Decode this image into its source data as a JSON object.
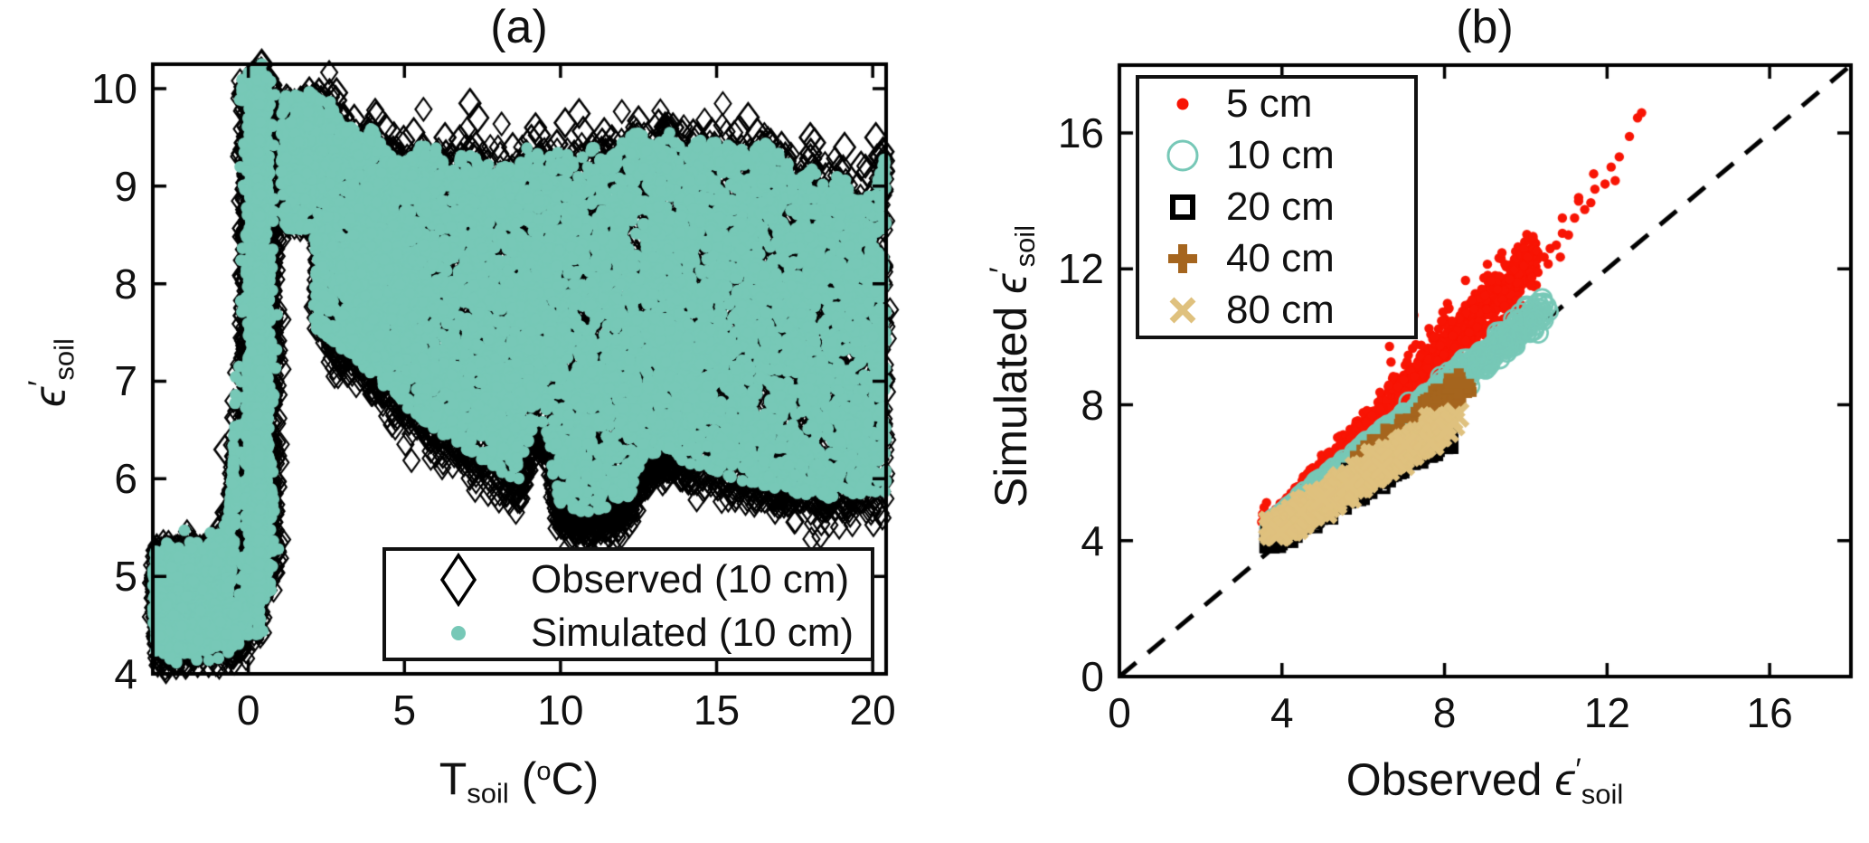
{
  "colors": {
    "teal": "#77C8B7",
    "red": "#F81404",
    "black": "#000000",
    "brown": "#A5651E",
    "tan": "#DFC17E",
    "axis": "#000000",
    "text": "#111111"
  },
  "chart_data": [
    {
      "panel": "a",
      "type": "scatter",
      "title": "(a)",
      "xlabel": {
        "t": "T",
        "sub": "soil",
        "mid": " (",
        "sup": "o",
        "end": "C)"
      },
      "ylabel": {
        "pre": "",
        "eps": "ϵ",
        "prime": "′",
        "sub": "soil"
      },
      "xlim": [
        -3.06,
        20.43
      ],
      "ylim": [
        4,
        10.25
      ],
      "xticks": [
        0,
        5,
        10,
        15,
        20
      ],
      "yticks": [
        4,
        5,
        6,
        7,
        8,
        9,
        10
      ],
      "grid": false,
      "legend_position": "lower right",
      "legend": [
        {
          "label": "Observed (10 cm)",
          "marker": "diamond",
          "color_key": "black"
        },
        {
          "label": "Simulated (10 cm)",
          "marker": "dot",
          "color_key": "teal"
        }
      ],
      "groups": [
        {
          "kind": "band",
          "poly": [
            [
              -3.06,
              5.02
            ],
            [
              -2.2,
              5.05
            ],
            [
              -1.4,
              5.08
            ],
            [
              -0.95,
              5.14
            ],
            [
              -0.7,
              5.3
            ],
            [
              -0.55,
              5.7
            ],
            [
              -0.45,
              6.3
            ],
            [
              -0.4,
              6.9
            ]
          ],
          "hw": 0.12,
          "n": 650
        },
        {
          "kind": "band",
          "poly": [
            [
              -3.06,
              4.62
            ],
            [
              -2.2,
              4.64
            ],
            [
              -1.3,
              4.67
            ],
            [
              -0.85,
              4.74
            ],
            [
              -0.6,
              4.95
            ],
            [
              -0.45,
              5.4
            ],
            [
              -0.35,
              5.9
            ]
          ],
          "hw": 0.09,
          "n": 520
        },
        {
          "kind": "band",
          "poly": [
            [
              -2.96,
              4.42
            ],
            [
              -2.2,
              4.44
            ],
            [
              -1.2,
              4.46
            ],
            [
              -0.4,
              4.5
            ],
            [
              -0.05,
              4.58
            ],
            [
              0.2,
              4.75
            ],
            [
              0.38,
              5.2
            ],
            [
              0.48,
              5.9
            ]
          ],
          "hw": 0.11,
          "n": 850
        },
        {
          "kind": "band",
          "poly": [
            [
              -2.96,
              4.3
            ],
            [
              -2.2,
              4.32
            ],
            [
              -1.2,
              4.34
            ],
            [
              -0.4,
              4.38
            ],
            [
              -0.05,
              4.46
            ]
          ],
          "hw": 0.07,
          "n": 240,
          "obs_only": true
        },
        {
          "kind": "column",
          "cx": 0.3,
          "sx": 0.2,
          "y0": 4.75,
          "y1": 10.2,
          "n": 1600
        },
        {
          "kind": "column",
          "cx": 0.72,
          "sx": 0.15,
          "y0": 5.0,
          "y1": 10.05,
          "n": 450,
          "obs_only": true
        },
        {
          "kind": "column",
          "cx": -0.05,
          "sx": 0.1,
          "y0": 5.2,
          "y1": 10.0,
          "n": 300,
          "obs_only": true
        },
        {
          "kind": "column",
          "cx": 0.35,
          "sx": 0.05,
          "y0": 4.4,
          "y1": 10.15,
          "n": 380
        },
        {
          "kind": "cloud",
          "x0": 2.1,
          "x1": 20.43,
          "n": 6200,
          "lower": [
            [
              2.1,
              7.55
            ],
            [
              3,
              7.3
            ],
            [
              4,
              7.05
            ],
            [
              5,
              6.75
            ],
            [
              6,
              6.5
            ],
            [
              7,
              6.3
            ],
            [
              8,
              6.08
            ],
            [
              8.7,
              5.98
            ],
            [
              9.15,
              6.55
            ],
            [
              9.55,
              6.45
            ],
            [
              9.85,
              5.85
            ],
            [
              10.1,
              5.68
            ],
            [
              10.7,
              5.62
            ],
            [
              11.5,
              5.7
            ],
            [
              12.2,
              5.8
            ],
            [
              12.7,
              6.15
            ],
            [
              13.2,
              6.32
            ],
            [
              13.8,
              6.2
            ],
            [
              14.5,
              6.1
            ],
            [
              15.5,
              6.0
            ],
            [
              16.5,
              5.92
            ],
            [
              17.5,
              5.85
            ],
            [
              18.5,
              5.8
            ],
            [
              19.5,
              5.83
            ],
            [
              20.43,
              5.85
            ]
          ],
          "upper": [
            [
              2.1,
              9.75
            ],
            [
              2.6,
              9.9
            ],
            [
              3,
              9.6
            ],
            [
              3.6,
              9.65
            ],
            [
              4.2,
              9.55
            ],
            [
              4.6,
              9.3
            ],
            [
              5,
              9.28
            ],
            [
              5.5,
              9.42
            ],
            [
              6,
              9.4
            ],
            [
              6.5,
              9.18
            ],
            [
              7,
              9.4
            ],
            [
              7.5,
              9.22
            ],
            [
              8,
              9.32
            ],
            [
              8.5,
              9.18
            ],
            [
              9,
              9.45
            ],
            [
              9.5,
              9.28
            ],
            [
              10,
              9.4
            ],
            [
              10.5,
              9.22
            ],
            [
              11,
              9.42
            ],
            [
              11.5,
              9.28
            ],
            [
              12,
              9.45
            ],
            [
              12.5,
              9.58
            ],
            [
              13,
              9.45
            ],
            [
              13.5,
              9.55
            ],
            [
              14,
              9.42
            ],
            [
              14.5,
              9.5
            ],
            [
              15,
              9.45
            ],
            [
              15.5,
              9.52
            ],
            [
              16,
              9.32
            ],
            [
              16.5,
              9.45
            ],
            [
              17,
              9.38
            ],
            [
              17.5,
              9.15
            ],
            [
              18,
              9.2
            ],
            [
              18.5,
              9.0
            ],
            [
              19,
              9.15
            ],
            [
              19.5,
              8.9
            ],
            [
              20,
              9.0
            ],
            [
              20.43,
              9.35
            ]
          ]
        },
        {
          "kind": "bridge",
          "x0": 1.05,
          "x1": 2.15,
          "y0": 8.55,
          "y1": 9.95,
          "n": 240
        },
        {
          "kind": "fringe-lower",
          "n": 800
        },
        {
          "kind": "fringe-upper",
          "n": 100
        },
        {
          "kind": "chain",
          "from": [
            0.42,
            10.22
          ],
          "to": [
            1.62,
            9.5
          ],
          "n": 9,
          "big": true
        },
        {
          "kind": "chain",
          "from": [
            1.95,
            10.02
          ],
          "to": [
            3.55,
            9.33
          ],
          "n": 13,
          "big": true
        },
        {
          "kind": "chain",
          "from": [
            3.8,
            9.5
          ],
          "to": [
            5.2,
            9.12
          ],
          "n": 8,
          "big": true
        },
        {
          "kind": "points",
          "big": true,
          "obs_only": true,
          "pts": [
            [
              0.42,
              10.24
            ],
            [
              0.62,
              10.1
            ],
            [
              2.6,
              9.95
            ],
            [
              2.8,
              9.88
            ],
            [
              4.1,
              9.72
            ],
            [
              5.3,
              9.55
            ],
            [
              6.3,
              9.5
            ],
            [
              7.1,
              9.85
            ],
            [
              7.35,
              9.7
            ],
            [
              9.2,
              9.6
            ],
            [
              10.15,
              9.65
            ],
            [
              11.4,
              9.55
            ],
            [
              12.5,
              9.67
            ],
            [
              13.6,
              9.6
            ],
            [
              14.85,
              9.55
            ],
            [
              16.3,
              9.55
            ],
            [
              17.2,
              9.3
            ],
            [
              18.0,
              9.5
            ],
            [
              18.6,
              9.1
            ],
            [
              19.1,
              9.4
            ],
            [
              20.1,
              9.5
            ],
            [
              20.3,
              8.95
            ],
            [
              20.35,
              9.15
            ],
            [
              -0.75,
              6.3
            ]
          ]
        },
        {
          "kind": "points",
          "pts": [
            [
              -0.5,
              6.0
            ],
            [
              -0.3,
              6.55
            ],
            [
              -0.15,
              7.0
            ],
            [
              0.1,
              7.3
            ],
            [
              -0.52,
              5.95
            ]
          ]
        }
      ]
    },
    {
      "panel": "b",
      "type": "scatter",
      "title": "(b)",
      "xlabel": {
        "pre": "Observed ",
        "eps": "ϵ",
        "prime": "′",
        "sub": "soil"
      },
      "ylabel": {
        "pre": "Simulated ",
        "eps": "ϵ",
        "prime": "′",
        "sub": "soil"
      },
      "xlim": [
        0,
        18
      ],
      "ylim": [
        0,
        18
      ],
      "xticks": [
        0,
        4,
        8,
        12,
        16
      ],
      "yticks": [
        0,
        4,
        8,
        12,
        16
      ],
      "grid": false,
      "legend_position": "upper left",
      "identity_line": {
        "from": [
          0,
          0
        ],
        "to": [
          18,
          18
        ],
        "style": "dashed",
        "color_key": "black"
      },
      "legend": [
        {
          "label": "5 cm",
          "marker": "dot",
          "color_key": "red"
        },
        {
          "label": "10 cm",
          "marker": "circle",
          "color_key": "teal"
        },
        {
          "label": "20 cm",
          "marker": "square",
          "color_key": "black"
        },
        {
          "label": "40 cm",
          "marker": "plus",
          "color_key": "brown"
        },
        {
          "label": "80 cm",
          "marker": "x",
          "color_key": "tan"
        }
      ],
      "series": [
        {
          "name": "5 cm",
          "marker": "dot",
          "color_key": "red",
          "band": {
            "p0": [
              3.55,
              4.4
            ],
            "p1": [
              10.3,
              12.35
            ],
            "s0": 0.1,
            "s1": 0.45,
            "n": 1100
          },
          "fringe": {
            "x0": 6.5,
            "x1": 10.25,
            "dy": 0.2,
            "spread": 0.55,
            "n": 60
          },
          "extra": [
            [
              10.45,
              12.35
            ],
            [
              10.6,
              12.6
            ],
            [
              10.75,
              12.7
            ],
            [
              10.55,
              12.15
            ],
            [
              10.9,
              13.05
            ],
            [
              11.05,
              13.0
            ],
            [
              11.2,
              13.5
            ],
            [
              11.45,
              13.75
            ],
            [
              11.3,
              14.0
            ],
            [
              11.7,
              14.35
            ],
            [
              11.95,
              14.5
            ],
            [
              12.1,
              15.0
            ],
            [
              12.3,
              15.3
            ],
            [
              12.55,
              15.9
            ],
            [
              12.75,
              16.45
            ],
            [
              12.85,
              16.6
            ],
            [
              10.85,
              12.35
            ],
            [
              11.6,
              13.95
            ],
            [
              12.2,
              14.6
            ],
            [
              10.3,
              11.9
            ],
            [
              10.15,
              11.75
            ],
            [
              9.95,
              12.1
            ],
            [
              10.05,
              12.35
            ],
            [
              9.6,
              11.7
            ],
            [
              9.3,
              11.4
            ],
            [
              11.67,
              14.8
            ],
            [
              11.3,
              14.1
            ],
            [
              10.9,
              13.5
            ],
            [
              3.5,
              4.55
            ],
            [
              3.52,
              4.78
            ],
            [
              3.56,
              4.98
            ],
            [
              3.62,
              5.12
            ]
          ]
        },
        {
          "name": "10 cm",
          "marker": "circle",
          "color_key": "teal",
          "band": {
            "p0": [
              3.7,
              4.42
            ],
            "p1": [
              10.45,
              10.8
            ],
            "s0": 0.08,
            "s1": 0.22,
            "n": 650
          },
          "extra": [
            [
              10.5,
              10.9
            ],
            [
              10.38,
              10.62
            ],
            [
              10.3,
              10.95
            ],
            [
              10.55,
              10.75
            ],
            [
              10.2,
              10.5
            ]
          ]
        },
        {
          "name": "20 cm",
          "marker": "square",
          "color_key": "black",
          "band": {
            "p0": [
              3.68,
              4.03
            ],
            "p1": [
              8.1,
              7.28
            ],
            "s0": 0.12,
            "s1": 0.17,
            "n": 560
          },
          "extra": [
            [
              3.72,
              3.95
            ],
            [
              3.78,
              4.0
            ]
          ]
        },
        {
          "name": "40 cm",
          "marker": "plus",
          "color_key": "brown",
          "band": {
            "p0": [
              6.2,
              6.55
            ],
            "p1": [
              8.55,
              8.7
            ],
            "s0": 0.1,
            "s1": 0.12,
            "n": 26
          },
          "extra": [
            [
              8.35,
              8.62
            ],
            [
              6.05,
              6.5
            ]
          ]
        },
        {
          "name": "80 cm",
          "marker": "x",
          "color_key": "tan",
          "band": {
            "p0": [
              3.72,
              4.22
            ],
            "p1": [
              7.9,
              7.35
            ],
            "s0": 0.1,
            "s1": 0.15,
            "n": 470
          },
          "extra": [
            [
              8.0,
              7.45
            ],
            [
              8.15,
              7.6
            ],
            [
              8.3,
              7.7
            ],
            [
              8.2,
              7.45
            ],
            [
              8.05,
              7.25
            ]
          ]
        }
      ]
    }
  ]
}
